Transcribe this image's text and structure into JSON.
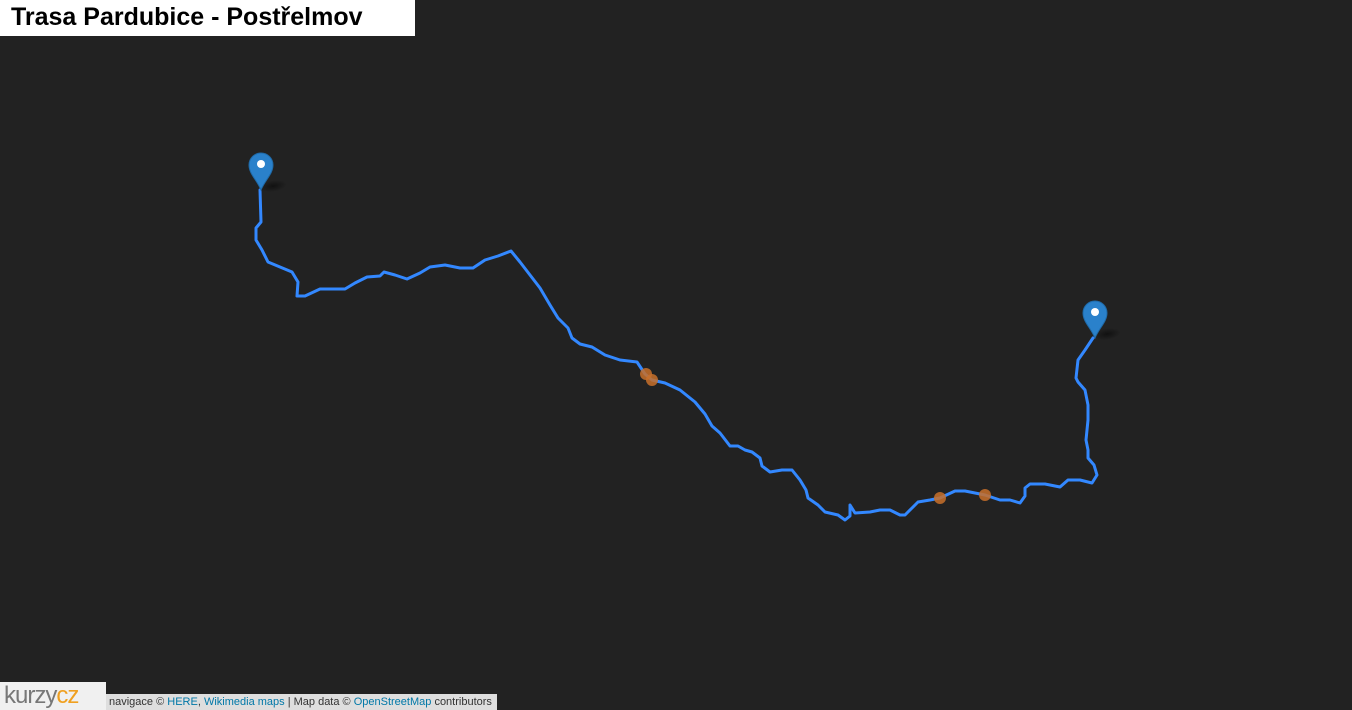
{
  "header": {
    "title": "Trasa Pardubice - Postřelmov"
  },
  "attribution": {
    "prefix": "navigace ©",
    "links": [
      "HERE",
      "Wikimedia maps"
    ],
    "separator": ",",
    "middle": "| Map data ©",
    "osm": "OpenStreetMap",
    "suffix": "contributors"
  },
  "logo": {
    "part1": "kurzy",
    "part2": "cz"
  }
}
